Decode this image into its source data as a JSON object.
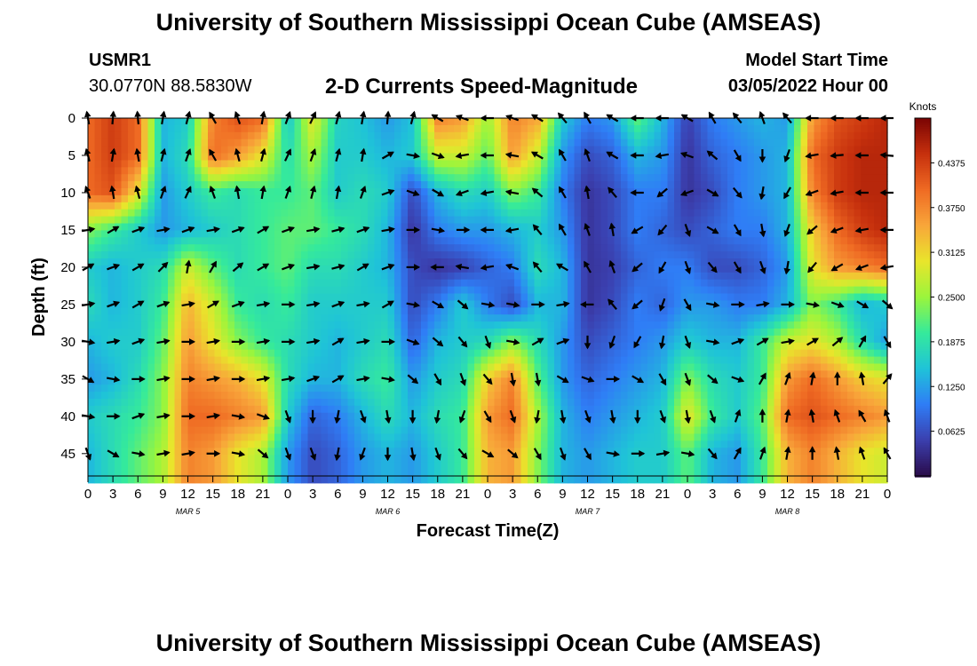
{
  "header": {
    "title": "University of Southern Mississippi Ocean Cube (AMSEAS)",
    "station": "USMR1",
    "coords": "30.0770N  88.5830W",
    "subtitle": "2-D Currents Speed-Magnitude",
    "model_start_label": "Model Start Time",
    "model_start_value": "03/05/2022 Hour 00"
  },
  "footer": {
    "title": "University of Southern Mississippi Ocean Cube (AMSEAS)"
  },
  "chart_data": {
    "type": "heatmap",
    "title": "2-D Currents Speed-Magnitude",
    "xlabel": "Forecast Time(Z)",
    "ylabel": "Depth (ft)",
    "x_ticks": [
      "0",
      "3",
      "6",
      "9",
      "12",
      "15",
      "18",
      "21",
      "0",
      "3",
      "6",
      "9",
      "12",
      "15",
      "18",
      "21",
      "0",
      "3",
      "6",
      "9",
      "12",
      "15",
      "18",
      "21",
      "0",
      "3",
      "6",
      "9",
      "12",
      "15",
      "18",
      "21",
      "0"
    ],
    "x_range_hours": [
      0,
      96
    ],
    "date_labels": [
      {
        "hour": 12,
        "text": "MAR 5"
      },
      {
        "hour": 36,
        "text": "MAR 6"
      },
      {
        "hour": 60,
        "text": "MAR 7"
      },
      {
        "hour": 84,
        "text": "MAR 8"
      }
    ],
    "y_ticks": [
      0,
      5,
      10,
      15,
      20,
      25,
      30,
      35,
      40,
      45
    ],
    "y_range": [
      0,
      48
    ],
    "colorbar": {
      "label": "Knots",
      "min": 0,
      "max": 0.5,
      "ticks": [
        "0.4375",
        "0.3750",
        "0.3125",
        "0.2500",
        "0.1875",
        "0.1250",
        "0.0625"
      ],
      "tick_values": [
        0.4375,
        0.375,
        0.3125,
        0.25,
        0.1875,
        0.125,
        0.0625
      ],
      "colors": [
        "#2a0b4a",
        "#3b3fae",
        "#2f7df6",
        "#1fc3d8",
        "#35ea9b",
        "#9bf53c",
        "#e9e52b",
        "#f8a63a",
        "#ef6a23",
        "#c6300d",
        "#7a0403"
      ]
    },
    "depths": [
      0,
      5,
      10,
      15,
      20,
      25,
      30,
      35,
      40,
      45
    ],
    "hours": [
      0,
      3,
      6,
      9,
      12,
      15,
      18,
      21,
      24,
      27,
      30,
      33,
      36,
      39,
      42,
      45,
      48,
      51,
      54,
      57,
      60,
      63,
      66,
      69,
      72,
      75,
      78,
      81,
      84,
      87,
      90,
      93,
      96
    ],
    "speed": [
      [
        0.4,
        0.44,
        0.4,
        0.14,
        0.16,
        0.38,
        0.42,
        0.4,
        0.15,
        0.3,
        0.17,
        0.15,
        0.12,
        0.15,
        0.38,
        0.36,
        0.25,
        0.38,
        0.35,
        0.16,
        0.1,
        0.12,
        0.22,
        0.14,
        0.05,
        0.1,
        0.12,
        0.14,
        0.12,
        0.36,
        0.42,
        0.44,
        0.46
      ],
      [
        0.4,
        0.44,
        0.4,
        0.14,
        0.18,
        0.4,
        0.36,
        0.3,
        0.18,
        0.26,
        0.16,
        0.16,
        0.14,
        0.16,
        0.28,
        0.28,
        0.22,
        0.36,
        0.28,
        0.12,
        0.06,
        0.08,
        0.14,
        0.12,
        0.04,
        0.08,
        0.1,
        0.12,
        0.14,
        0.4,
        0.44,
        0.46,
        0.46
      ],
      [
        0.4,
        0.42,
        0.3,
        0.12,
        0.16,
        0.2,
        0.18,
        0.2,
        0.2,
        0.22,
        0.16,
        0.18,
        0.16,
        0.06,
        0.14,
        0.18,
        0.16,
        0.24,
        0.2,
        0.1,
        0.04,
        0.06,
        0.1,
        0.1,
        0.04,
        0.06,
        0.1,
        0.12,
        0.14,
        0.38,
        0.44,
        0.46,
        0.46
      ],
      [
        0.24,
        0.2,
        0.16,
        0.12,
        0.14,
        0.16,
        0.18,
        0.2,
        0.22,
        0.22,
        0.2,
        0.18,
        0.14,
        0.04,
        0.1,
        0.12,
        0.12,
        0.14,
        0.16,
        0.12,
        0.04,
        0.06,
        0.1,
        0.08,
        0.06,
        0.08,
        0.1,
        0.1,
        0.14,
        0.32,
        0.4,
        0.44,
        0.46
      ],
      [
        0.16,
        0.14,
        0.16,
        0.18,
        0.28,
        0.22,
        0.18,
        0.2,
        0.22,
        0.18,
        0.18,
        0.16,
        0.14,
        0.06,
        0.04,
        0.05,
        0.08,
        0.1,
        0.18,
        0.14,
        0.04,
        0.05,
        0.08,
        0.1,
        0.1,
        0.06,
        0.06,
        0.08,
        0.12,
        0.3,
        0.36,
        0.38,
        0.4
      ],
      [
        0.18,
        0.14,
        0.16,
        0.2,
        0.34,
        0.28,
        0.2,
        0.18,
        0.2,
        0.16,
        0.16,
        0.16,
        0.16,
        0.06,
        0.1,
        0.16,
        0.1,
        0.06,
        0.14,
        0.14,
        0.04,
        0.06,
        0.1,
        0.08,
        0.12,
        0.12,
        0.1,
        0.1,
        0.14,
        0.24,
        0.2,
        0.14,
        0.16
      ],
      [
        0.14,
        0.16,
        0.16,
        0.22,
        0.36,
        0.3,
        0.24,
        0.2,
        0.18,
        0.16,
        0.14,
        0.16,
        0.18,
        0.08,
        0.14,
        0.16,
        0.18,
        0.24,
        0.18,
        0.12,
        0.06,
        0.08,
        0.1,
        0.12,
        0.16,
        0.14,
        0.14,
        0.2,
        0.28,
        0.3,
        0.26,
        0.18,
        0.12
      ],
      [
        0.12,
        0.14,
        0.18,
        0.24,
        0.38,
        0.36,
        0.34,
        0.3,
        0.18,
        0.14,
        0.14,
        0.18,
        0.2,
        0.12,
        0.16,
        0.18,
        0.32,
        0.38,
        0.22,
        0.12,
        0.08,
        0.1,
        0.12,
        0.14,
        0.24,
        0.18,
        0.16,
        0.2,
        0.36,
        0.4,
        0.36,
        0.32,
        0.3
      ],
      [
        0.16,
        0.18,
        0.2,
        0.24,
        0.4,
        0.4,
        0.38,
        0.36,
        0.16,
        0.08,
        0.1,
        0.14,
        0.18,
        0.14,
        0.18,
        0.2,
        0.36,
        0.4,
        0.26,
        0.14,
        0.1,
        0.12,
        0.14,
        0.16,
        0.3,
        0.2,
        0.16,
        0.22,
        0.4,
        0.42,
        0.4,
        0.38,
        0.36
      ],
      [
        0.14,
        0.18,
        0.22,
        0.26,
        0.38,
        0.36,
        0.3,
        0.26,
        0.12,
        0.06,
        0.08,
        0.12,
        0.14,
        0.12,
        0.16,
        0.2,
        0.34,
        0.36,
        0.24,
        0.14,
        0.12,
        0.14,
        0.16,
        0.16,
        0.22,
        0.14,
        0.12,
        0.2,
        0.34,
        0.38,
        0.34,
        0.3,
        0.28
      ]
    ],
    "direction_deg": [
      [
        350,
        5,
        355,
        10,
        15,
        330,
        340,
        10,
        20,
        25,
        15,
        10,
        5,
        15,
        300,
        290,
        270,
        290,
        300,
        320,
        330,
        300,
        270,
        270,
        300,
        330,
        320,
        340,
        320,
        270,
        270,
        270,
        270
      ],
      [
        345,
        10,
        350,
        15,
        20,
        330,
        345,
        15,
        25,
        20,
        15,
        10,
        60,
        100,
        110,
        260,
        270,
        280,
        300,
        330,
        340,
        300,
        270,
        260,
        290,
        310,
        150,
        180,
        200,
        260,
        265,
        270,
        275
      ],
      [
        340,
        350,
        345,
        20,
        25,
        340,
        350,
        10,
        20,
        15,
        10,
        20,
        70,
        110,
        120,
        250,
        260,
        280,
        310,
        330,
        350,
        320,
        270,
        230,
        250,
        120,
        140,
        190,
        210,
        250,
        260,
        270,
        270
      ],
      [
        80,
        60,
        70,
        80,
        70,
        80,
        70,
        60,
        70,
        80,
        75,
        70,
        80,
        90,
        100,
        90,
        270,
        260,
        320,
        330,
        340,
        350,
        240,
        220,
        160,
        120,
        150,
        170,
        200,
        230,
        250,
        260,
        270
      ],
      [
        60,
        70,
        60,
        45,
        10,
        30,
        50,
        60,
        70,
        80,
        75,
        60,
        70,
        90,
        270,
        280,
        260,
        290,
        320,
        300,
        330,
        340,
        230,
        210,
        160,
        140,
        150,
        160,
        190,
        220,
        240,
        250,
        260
      ],
      [
        80,
        70,
        60,
        70,
        80,
        60,
        70,
        80,
        90,
        80,
        70,
        80,
        60,
        100,
        120,
        130,
        100,
        100,
        90,
        80,
        270,
        320,
        230,
        200,
        150,
        100,
        90,
        80,
        90,
        100,
        110,
        120,
        130
      ],
      [
        100,
        80,
        70,
        80,
        90,
        80,
        90,
        80,
        90,
        80,
        60,
        80,
        90,
        110,
        130,
        140,
        160,
        100,
        60,
        70,
        180,
        200,
        210,
        190,
        160,
        100,
        70,
        60,
        80,
        60,
        50,
        30,
        150
      ],
      [
        120,
        100,
        90,
        80,
        90,
        80,
        90,
        80,
        80,
        70,
        60,
        80,
        100,
        130,
        150,
        160,
        140,
        170,
        170,
        120,
        110,
        90,
        120,
        150,
        160,
        130,
        110,
        30,
        20,
        10,
        0,
        350,
        40
      ],
      [
        100,
        90,
        70,
        80,
        90,
        80,
        100,
        110,
        160,
        180,
        190,
        160,
        170,
        180,
        190,
        200,
        150,
        160,
        190,
        170,
        160,
        170,
        180,
        160,
        170,
        160,
        20,
        0,
        10,
        350,
        340,
        330,
        340
      ],
      [
        160,
        120,
        100,
        80,
        80,
        90,
        100,
        130,
        160,
        160,
        190,
        200,
        180,
        170,
        160,
        140,
        120,
        130,
        150,
        160,
        150,
        100,
        90,
        80,
        100,
        140,
        30,
        20,
        10,
        0,
        350,
        340,
        330
      ]
    ]
  }
}
